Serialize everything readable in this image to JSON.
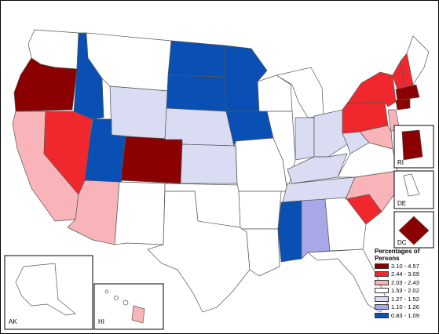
{
  "legend": {
    "title": "Percentages of Persons",
    "classes": [
      {
        "label": "3.10 - 4.57",
        "color": "#8b0000"
      },
      {
        "label": "2.44 - 3.09",
        "color": "#f0282d"
      },
      {
        "label": "2.03 - 2.43",
        "color": "#f8b4b8"
      },
      {
        "label": "1.53 - 2.02",
        "color": "#ffffff"
      },
      {
        "label": "1.27 - 1.52",
        "color": "#d9dcf2"
      },
      {
        "label": "1.10 - 1.26",
        "color": "#a8a8e8"
      },
      {
        "label": "0.83 - 1.09",
        "color": "#0a50b4"
      }
    ]
  },
  "insets": {
    "ri": "RI",
    "de": "DE",
    "dc": "DC",
    "ak": "AK",
    "hi": "HI"
  },
  "regions": [
    {
      "name": "WA",
      "class": 3
    },
    {
      "name": "OR",
      "class": 0
    },
    {
      "name": "CA",
      "class": 2
    },
    {
      "name": "NV",
      "class": 1
    },
    {
      "name": "ID",
      "class": 6
    },
    {
      "name": "MT",
      "class": 3
    },
    {
      "name": "WY",
      "class": 4
    },
    {
      "name": "UT",
      "class": 6
    },
    {
      "name": "CO",
      "class": 0
    },
    {
      "name": "AZ",
      "class": 2
    },
    {
      "name": "NM",
      "class": 3
    },
    {
      "name": "ND",
      "class": 6
    },
    {
      "name": "SD",
      "class": 6
    },
    {
      "name": "NE",
      "class": 4
    },
    {
      "name": "KS",
      "class": 4
    },
    {
      "name": "OK",
      "class": 3
    },
    {
      "name": "TX",
      "class": 3
    },
    {
      "name": "MN",
      "class": 6
    },
    {
      "name": "IA",
      "class": 6
    },
    {
      "name": "MO",
      "class": 3
    },
    {
      "name": "AR",
      "class": 3
    },
    {
      "name": "LA",
      "class": 3
    },
    {
      "name": "WI",
      "class": 3
    },
    {
      "name": "IL",
      "class": 3
    },
    {
      "name": "MI",
      "class": 3
    },
    {
      "name": "IN",
      "class": 4
    },
    {
      "name": "OH",
      "class": 4
    },
    {
      "name": "KY",
      "class": 4
    },
    {
      "name": "TN",
      "class": 4
    },
    {
      "name": "MS",
      "class": 6
    },
    {
      "name": "AL",
      "class": 5
    },
    {
      "name": "GA",
      "class": 3
    },
    {
      "name": "FL",
      "class": 3
    },
    {
      "name": "SC",
      "class": 1
    },
    {
      "name": "NC",
      "class": 2
    },
    {
      "name": "VA",
      "class": 3
    },
    {
      "name": "WV",
      "class": 4
    },
    {
      "name": "PA",
      "class": 1
    },
    {
      "name": "NY",
      "class": 1
    },
    {
      "name": "VT",
      "class": 1
    },
    {
      "name": "NH",
      "class": 1
    },
    {
      "name": "ME",
      "class": 3
    },
    {
      "name": "MA",
      "class": 0
    },
    {
      "name": "CT",
      "class": 0
    },
    {
      "name": "NJ",
      "class": 2
    },
    {
      "name": "MD",
      "class": 2
    }
  ]
}
